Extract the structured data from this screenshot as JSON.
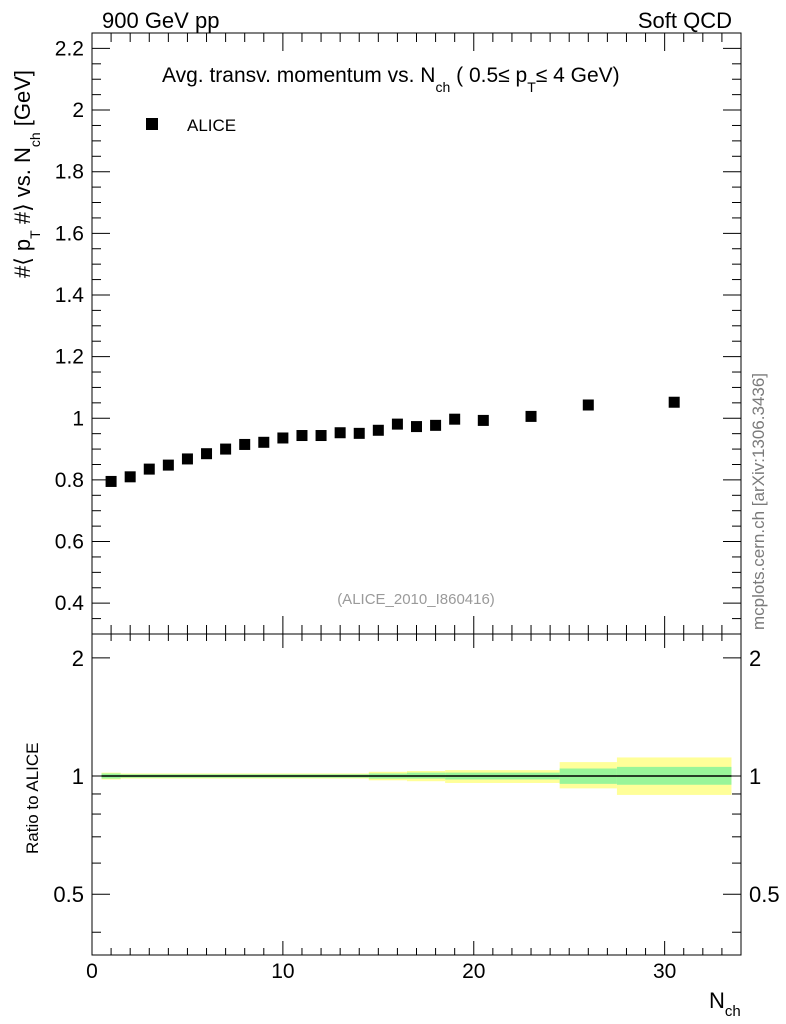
{
  "header": {
    "left": "900 GeV pp",
    "right": "Soft QCD"
  },
  "chart_data": {
    "type": "scatter",
    "title": "Avg. transv. momentum vs. N_ch ( 0.5≤ p_T≤ 4 GeV)",
    "title_parts": {
      "main": "Avg. transv. momentum vs. N",
      "sub1": "ch",
      "mid": " ( 0.5≤ p",
      "sub2": "T",
      "end": "≤ 4 GeV)"
    },
    "ylabel": "#⟨ p_T #⟩ vs. N_ch [GeV]",
    "ylabel_parts": {
      "a": "#⟨ p",
      "sub1": "T",
      "b": " #⟩ vs. N",
      "sub2": "ch",
      "c": " [GeV]"
    },
    "xlabel": "N_ch",
    "xlabel_parts": {
      "main": "N",
      "sub": "ch"
    },
    "xlim": [
      0,
      34
    ],
    "ylim": [
      0.3,
      2.25
    ],
    "x_ticks": [
      "0",
      "10",
      "20",
      "30"
    ],
    "y_ticks": [
      "0.4",
      "0.6",
      "0.8",
      "1",
      "1.2",
      "1.4",
      "1.6",
      "1.8",
      "2",
      "2.2"
    ],
    "legend": {
      "label": "ALICE",
      "placement": "top-left"
    },
    "series": [
      {
        "name": "ALICE",
        "x": [
          1,
          2,
          3,
          4,
          5,
          6,
          7,
          8,
          9,
          10,
          11,
          12,
          13,
          14,
          15,
          16,
          17,
          18,
          19,
          20.5,
          23,
          26,
          30.5
        ],
        "y": [
          0.795,
          0.81,
          0.835,
          0.848,
          0.868,
          0.885,
          0.9,
          0.915,
          0.922,
          0.936,
          0.944,
          0.944,
          0.953,
          0.951,
          0.961,
          0.981,
          0.973,
          0.977,
          0.997,
          0.993,
          1.006,
          1.043,
          1.052
        ]
      }
    ],
    "ratio": {
      "ylabel": "Ratio to ALICE",
      "ylim": [
        0.35,
        2.3
      ],
      "y_ticks": [
        "0.5",
        "1",
        "2"
      ],
      "reference": 1.0,
      "bands": [
        {
          "x0": 0.5,
          "x1": 1.5,
          "inner": [
            0.985,
            1.015
          ],
          "outer": [
            0.98,
            1.02
          ]
        },
        {
          "x0": 1.5,
          "x1": 14.5,
          "inner": [
            0.99,
            1.01
          ],
          "outer": [
            0.985,
            1.015
          ]
        },
        {
          "x0": 14.5,
          "x1": 16.5,
          "inner": [
            0.985,
            1.015
          ],
          "outer": [
            0.975,
            1.025
          ]
        },
        {
          "x0": 16.5,
          "x1": 18.5,
          "inner": [
            0.985,
            1.02
          ],
          "outer": [
            0.97,
            1.03
          ]
        },
        {
          "x0": 18.5,
          "x1": 24.5,
          "inner": [
            0.98,
            1.02
          ],
          "outer": [
            0.96,
            1.035
          ]
        },
        {
          "x0": 24.5,
          "x1": 27.5,
          "inner": [
            0.955,
            1.045
          ],
          "outer": [
            0.93,
            1.085
          ]
        },
        {
          "x0": 27.5,
          "x1": 33.5,
          "inner": [
            0.95,
            1.055
          ],
          "outer": [
            0.895,
            1.115
          ]
        }
      ]
    },
    "colors": {
      "inner_band": "#99f599",
      "outer_band": "#ffff99",
      "marker": "#000000"
    }
  },
  "side_label": "mcplots.cern.ch [arXiv:1306.3436]",
  "watermark": "(ALICE_2010_I860416)"
}
